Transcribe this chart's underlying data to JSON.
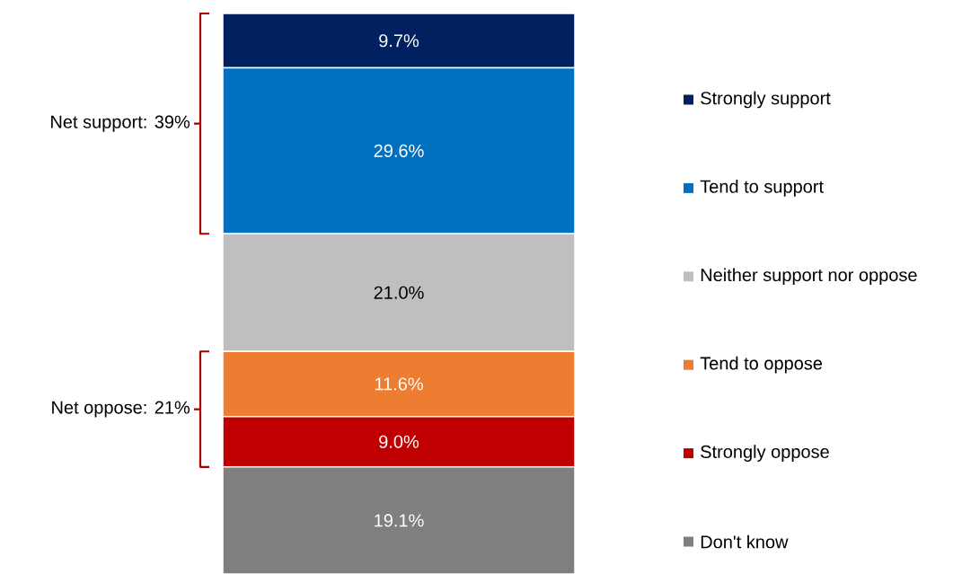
{
  "chart_data": {
    "type": "bar",
    "stacked": true,
    "categories": [
      null
    ],
    "series": [
      {
        "name": "Don't know",
        "color": "#7f7f7f",
        "values": [
          19.1
        ],
        "value_labels": [
          "19.1%"
        ]
      },
      {
        "name": "Strongly oppose",
        "color": "#c00000",
        "values": [
          9.0
        ],
        "value_labels": [
          "9.0%"
        ]
      },
      {
        "name": "Tend to oppose",
        "color": "#ed7d31",
        "values": [
          11.6
        ],
        "value_labels": [
          "11.6%"
        ]
      },
      {
        "name": "Neither support nor oppose",
        "color": "#bfbfbf",
        "values": [
          21.0
        ],
        "value_labels": [
          "21.0%"
        ]
      },
      {
        "name": "Tend to support",
        "color": "#0070c0",
        "values": [
          29.6
        ],
        "value_labels": [
          "29.6%"
        ]
      },
      {
        "name": "Strongly support",
        "color": "#002060",
        "values": [
          9.7
        ],
        "value_labels": [
          "9.7%"
        ]
      }
    ],
    "annotations": [
      "Net support: 39%",
      "Net oppose: 21%"
    ],
    "legend": "right"
  }
}
